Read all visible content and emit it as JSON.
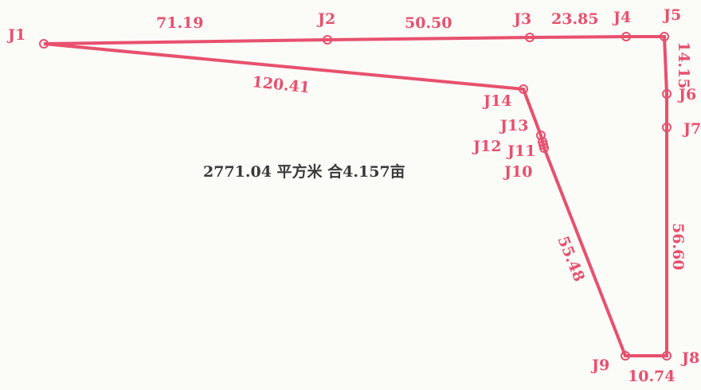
{
  "points": [
    {
      "id": "J1",
      "label": "J1"
    },
    {
      "id": "J2",
      "label": "J2"
    },
    {
      "id": "J3",
      "label": "J3"
    },
    {
      "id": "J4",
      "label": "J4"
    },
    {
      "id": "J5",
      "label": "J5"
    },
    {
      "id": "J6",
      "label": "J6"
    },
    {
      "id": "J7",
      "label": "J7"
    },
    {
      "id": "J8",
      "label": "J8"
    },
    {
      "id": "J9",
      "label": "J9"
    },
    {
      "id": "J10",
      "label": "J10"
    },
    {
      "id": "J11",
      "label": "J11"
    },
    {
      "id": "J12",
      "label": "J12"
    },
    {
      "id": "J13",
      "label": "J13"
    },
    {
      "id": "J14",
      "label": "J14"
    }
  ],
  "edges": [
    {
      "from": "J1",
      "to": "J2",
      "length": "71.19"
    },
    {
      "from": "J2",
      "to": "J3",
      "length": "50.50"
    },
    {
      "from": "J3",
      "to": "J4",
      "length": "23.85"
    },
    {
      "from": "J5",
      "to": "J6",
      "length": "14.15"
    },
    {
      "from": "J7",
      "to": "J8",
      "length": "56.60"
    },
    {
      "from": "J8",
      "to": "J9",
      "length": "10.74"
    },
    {
      "from": "J9",
      "to": "J10",
      "length": "55.48"
    },
    {
      "from": "J14",
      "to": "J1",
      "length": "120.41"
    }
  ],
  "area_text": "2771.04 平方米 合4.157亩",
  "line_color": "#e8506e"
}
